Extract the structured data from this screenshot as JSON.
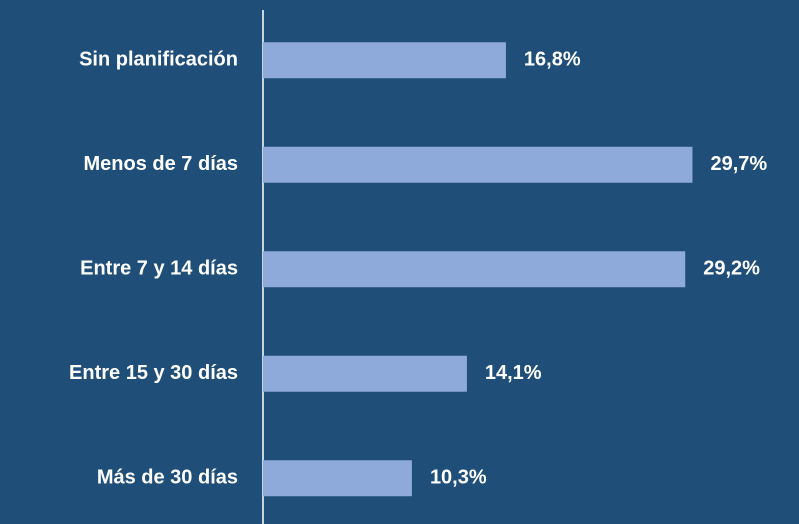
{
  "chart_data": {
    "type": "bar",
    "orientation": "horizontal",
    "categories": [
      "Sin planificación",
      "Menos de 7 días",
      "Entre 7 y 14 días",
      "Entre 15 y 30 días",
      "Más de 30 días"
    ],
    "values": [
      16.8,
      29.7,
      29.2,
      14.1,
      10.3
    ],
    "value_labels": [
      "16,8%",
      "29,7%",
      "29,2%",
      "14,1%",
      "10,3%"
    ],
    "color": "#8eaadb"
  }
}
